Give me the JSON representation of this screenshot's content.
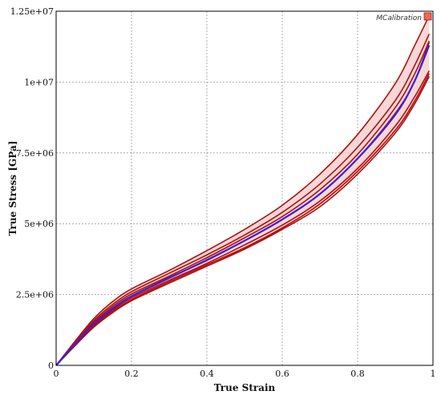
{
  "chart_data": {
    "type": "line",
    "xlabel": "True Strain",
    "ylabel": "True Stress [GPa]",
    "xlim": [
      0,
      1
    ],
    "ylim": [
      0,
      12500000
    ],
    "x_ticks": [
      "0",
      "0.2",
      "0.4",
      "0.6",
      "0.8",
      "1"
    ],
    "y_ticks": [
      "0",
      "2.5e+06",
      "5e+06",
      "7.5e+06",
      "1e+07",
      "1.25e+07"
    ],
    "grid": true,
    "watermark": "MCalibration",
    "colors": {
      "band": "#b01010",
      "band_fill": "#f4c8c8",
      "fit": "#3b1fd6"
    },
    "x": [
      0,
      0.05,
      0.1,
      0.15,
      0.2,
      0.3,
      0.4,
      0.5,
      0.6,
      0.7,
      0.8,
      0.9,
      0.95,
      0.99
    ],
    "series": [
      {
        "values": [
          0,
          850000,
          1650000,
          2250000,
          2700000,
          3350000,
          4050000,
          4800000,
          5650000,
          6750000,
          8150000,
          9950000,
          11250000,
          12350000
        ]
      },
      {
        "values": [
          0,
          800000,
          1580000,
          2150000,
          2600000,
          3250000,
          3900000,
          4600000,
          5400000,
          6400000,
          7700000,
          9350000,
          10550000,
          11700000
        ]
      },
      {
        "values": [
          0,
          760000,
          1520000,
          2080000,
          2520000,
          3150000,
          3800000,
          4500000,
          5250000,
          6200000,
          7450000,
          9100000,
          10250000,
          11450000
        ]
      },
      {
        "values": [
          0,
          750000,
          1480000,
          2020000,
          2450000,
          3100000,
          3700000,
          4400000,
          5150000,
          6050000,
          7300000,
          8900000,
          10000000,
          11400000
        ]
      },
      {
        "values": [
          0,
          720000,
          1420000,
          1950000,
          2380000,
          3000000,
          3600000,
          4250000,
          4950000,
          5800000,
          6950000,
          8450000,
          9450000,
          10400000
        ]
      },
      {
        "values": [
          0,
          700000,
          1380000,
          1900000,
          2320000,
          2950000,
          3550000,
          4150000,
          4850000,
          5700000,
          6850000,
          8300000,
          9300000,
          10300000
        ]
      },
      {
        "values": [
          0,
          690000,
          1350000,
          1860000,
          2280000,
          2900000,
          3500000,
          4100000,
          4800000,
          5600000,
          6750000,
          8200000,
          9200000,
          10200000
        ]
      },
      {
        "values": [
          0,
          740000,
          1460000,
          2000000,
          2440000,
          3080000,
          3720000,
          4400000,
          5150000,
          6050000,
          7300000,
          8850000,
          10000000,
          11300000
        ]
      }
    ]
  }
}
